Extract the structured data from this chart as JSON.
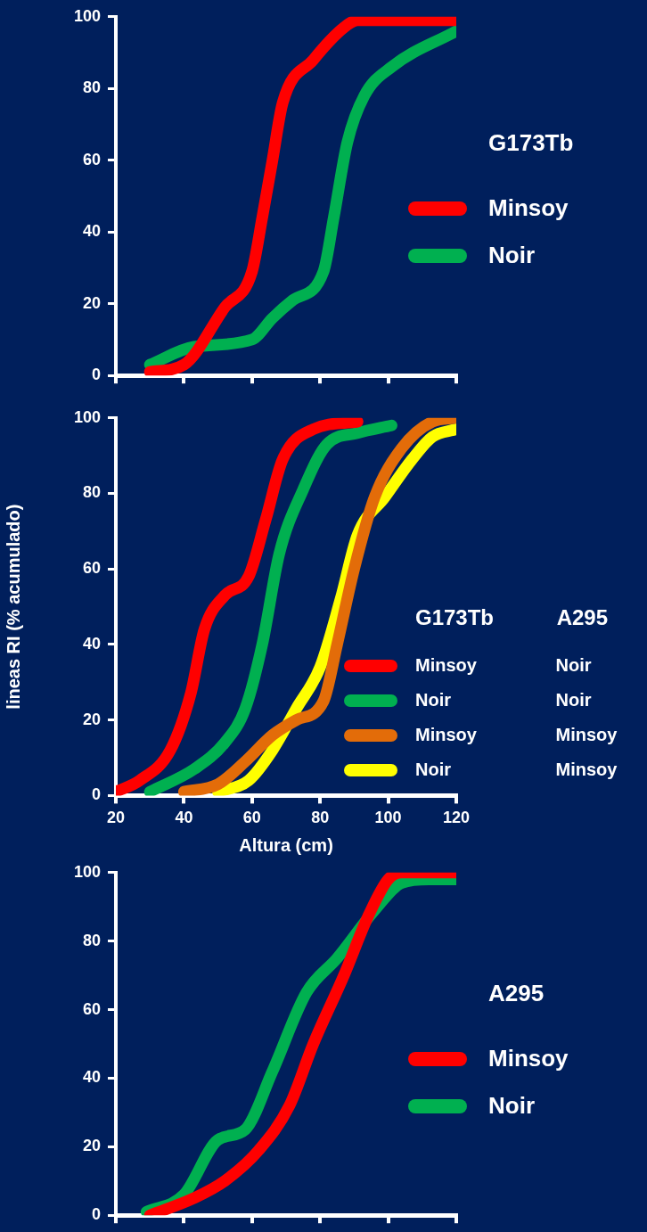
{
  "chart_data": [
    {
      "type": "line",
      "legend_title": "G173Tb",
      "legend": "right",
      "grid": false,
      "tick_labels": "y",
      "line_style": "solid",
      "xlim": [
        20,
        120
      ],
      "ylim": [
        0,
        100
      ],
      "xticks": [
        {
          "value": 20,
          "label": null
        },
        {
          "value": 40,
          "label": null
        },
        {
          "value": 60,
          "label": null
        },
        {
          "value": 80,
          "label": null
        },
        {
          "value": 100,
          "label": null
        },
        {
          "value": 120,
          "label": null
        }
      ],
      "yticks": [
        0,
        20,
        40,
        60,
        80,
        100
      ],
      "series": [
        {
          "name": "Minsoy",
          "color": "#ff0000",
          "x": [
            30,
            40,
            52,
            60,
            63,
            66,
            69,
            78,
            87,
            91,
            120
          ],
          "values": [
            1,
            3,
            19,
            29,
            44,
            60,
            76,
            88,
            97,
            99,
            99
          ]
        },
        {
          "name": "Noir",
          "color": "#00b050",
          "x": [
            30,
            43,
            60,
            66,
            72,
            81,
            84,
            88,
            93,
            101,
            120
          ],
          "values": [
            3,
            8,
            10,
            16,
            21,
            29,
            44,
            65,
            78,
            86,
            96
          ]
        }
      ]
    },
    {
      "type": "line",
      "legend_title": "G173Tb A295",
      "legend": "bottom right",
      "grid": false,
      "line_style": "solid",
      "xlabel": "Altura (cm)",
      "ylabel": "lineas RI (% acumulado)",
      "xlim": [
        20,
        120
      ],
      "ylim": [
        0,
        100
      ],
      "xticks": [
        20,
        40,
        60,
        80,
        100,
        120
      ],
      "yticks": [
        0,
        20,
        40,
        60,
        80,
        100
      ],
      "series": [
        {
          "name": "Minsoy Noir",
          "color": "#ff0000",
          "x": [
            20,
            27,
            36,
            42,
            46,
            52,
            59,
            64,
            69,
            78,
            91
          ],
          "values": [
            1,
            4,
            12,
            27,
            44,
            53,
            58,
            73,
            89,
            97,
            99
          ]
        },
        {
          "name": "Noir Noir",
          "color": "#00b050",
          "x": [
            30,
            43,
            52,
            58,
            63,
            68,
            75,
            82,
            91,
            101
          ],
          "values": [
            1,
            7,
            14,
            23,
            40,
            64,
            81,
            93,
            96,
            98
          ]
        },
        {
          "name": "Minsoy Minsoy",
          "color": "#e36c09",
          "x": [
            40,
            50,
            58,
            66,
            73,
            81,
            85,
            90,
            96,
            104,
            113,
            120
          ],
          "values": [
            1,
            3,
            9,
            16,
            20,
            25,
            40,
            60,
            79,
            92,
            99,
            100
          ]
        },
        {
          "name": "Noir Minsoy",
          "color": "#ffff00",
          "x": [
            50,
            59,
            66,
            73,
            80,
            86,
            91,
            99,
            107,
            113,
            120
          ],
          "values": [
            1,
            4,
            12,
            23,
            34,
            52,
            69,
            79,
            89,
            95,
            97
          ]
        }
      ]
    },
    {
      "type": "line",
      "legend_title": "A295",
      "legend": "right",
      "grid": false,
      "tick_labels": "y",
      "line_style": "solid",
      "xlim": [
        20,
        120
      ],
      "ylim": [
        0,
        100
      ],
      "xticks": [
        {
          "value": 20,
          "label": null
        },
        {
          "value": 40,
          "label": null
        },
        {
          "value": 60,
          "label": null
        },
        {
          "value": 80,
          "label": null
        },
        {
          "value": 100,
          "label": null
        },
        {
          "value": 120,
          "label": null
        }
      ],
      "yticks": [
        0,
        20,
        40,
        60,
        80,
        100
      ],
      "series": [
        {
          "name": "Minsoy",
          "color": "#ff0000",
          "x": [
            30,
            43,
            52,
            62,
            71,
            78,
            87,
            94,
            100,
            104,
            120
          ],
          "values": [
            0,
            5,
            10,
            19,
            32,
            50,
            70,
            87,
            98,
            100,
            100
          ]
        },
        {
          "name": "Noir",
          "color": "#00b050",
          "x": [
            29,
            40,
            50,
            58,
            66,
            76,
            85,
            96,
            104,
            112,
            120
          ],
          "values": [
            1,
            6,
            22,
            25,
            42,
            65,
            75,
            89,
            97,
            98,
            98
          ]
        }
      ]
    }
  ]
}
